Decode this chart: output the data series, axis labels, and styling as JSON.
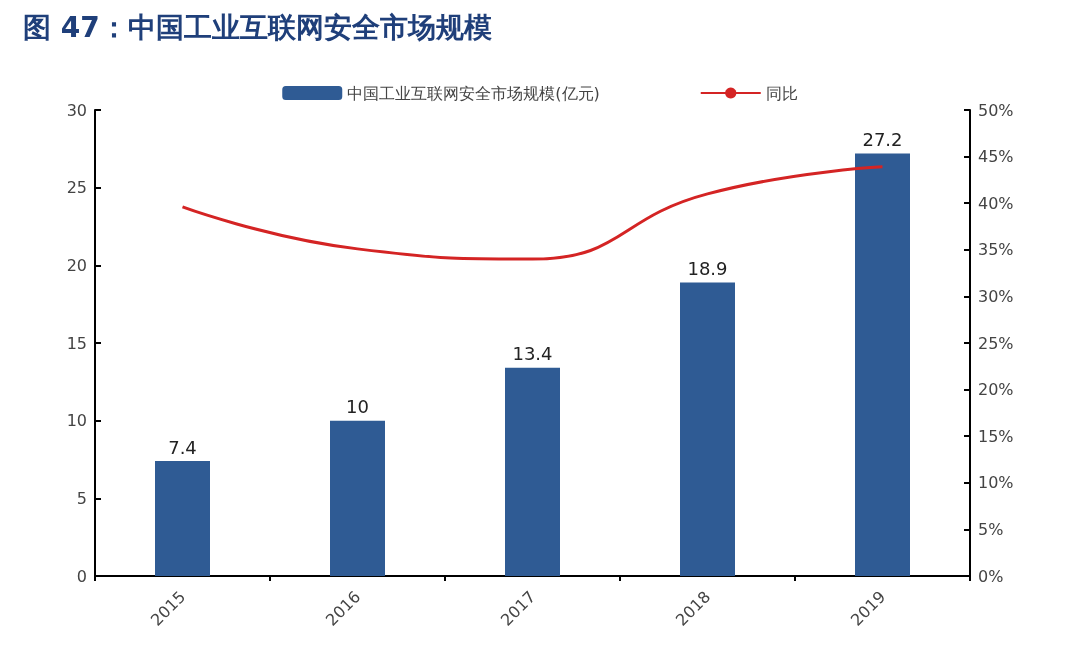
{
  "chart_data": {
    "type": "bar",
    "title": "图 47：中国工业互联网安全市场规模",
    "categories": [
      "2015",
      "2016",
      "2017",
      "2018",
      "2019"
    ],
    "series": [
      {
        "name": "中国工业互联网安全市场规模(亿元)",
        "color": "#2f5b94",
        "values": [
          7.4,
          10,
          13.4,
          18.9,
          27.2
        ],
        "data_labels": true
      },
      {
        "name": "同比",
        "type": "line",
        "axis": "y2",
        "color": "#d42424",
        "values": [
          39.6,
          35.1,
          34.0,
          41.0,
          43.9
        ],
        "marker": "none",
        "line_style": "solid"
      }
    ],
    "ylim": [
      0,
      30
    ],
    "yticks": [
      0,
      5,
      10,
      15,
      20,
      25,
      30
    ],
    "y2lim": [
      0,
      50
    ],
    "y2ticks": [
      {
        "value": 0,
        "label": "0%"
      },
      {
        "value": 5,
        "label": "5%"
      },
      {
        "value": 10,
        "label": "10%"
      },
      {
        "value": 15,
        "label": "15%"
      },
      {
        "value": 20,
        "label": "20%"
      },
      {
        "value": 25,
        "label": "25%"
      },
      {
        "value": 30,
        "label": "30%"
      },
      {
        "value": 35,
        "label": "35%"
      },
      {
        "value": 40,
        "label": "40%"
      },
      {
        "value": 45,
        "label": "45%"
      },
      {
        "value": 50,
        "label": "50%"
      }
    ],
    "grid": false,
    "legend": "top"
  }
}
